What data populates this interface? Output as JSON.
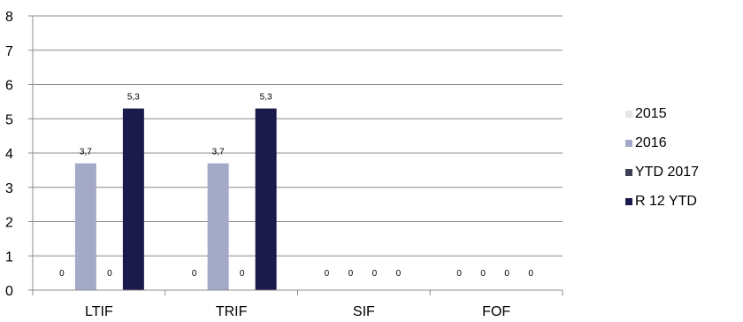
{
  "chart_data": {
    "type": "bar",
    "categories": [
      "LTIF",
      "TRIF",
      "SIF",
      "FOF"
    ],
    "series": [
      {
        "name": "2015",
        "color": "#e6e6e6",
        "values": [
          0,
          0,
          0,
          0
        ],
        "labels": [
          "0",
          "0",
          "0",
          "0"
        ]
      },
      {
        "name": "2016",
        "color": "#a4a9c8",
        "values": [
          3.7,
          3.7,
          0,
          0
        ],
        "labels": [
          "3,7",
          "3,7",
          "0",
          "0"
        ]
      },
      {
        "name": "YTD 2017",
        "color": "#3d3f57",
        "values": [
          0,
          0,
          0,
          0
        ],
        "labels": [
          "0",
          "0",
          "0",
          "0"
        ]
      },
      {
        "name": "R 12 YTD",
        "color": "#1b1b4b",
        "values": [
          5.3,
          5.3,
          0,
          0
        ],
        "labels": [
          "5,3",
          "5,3",
          "0",
          "0"
        ]
      }
    ],
    "yticks": [
      "0",
      "1",
      "2",
      "3",
      "4",
      "5",
      "6",
      "7",
      "8"
    ],
    "ylim": [
      0,
      8
    ],
    "grid": true,
    "legend_position": "right"
  }
}
